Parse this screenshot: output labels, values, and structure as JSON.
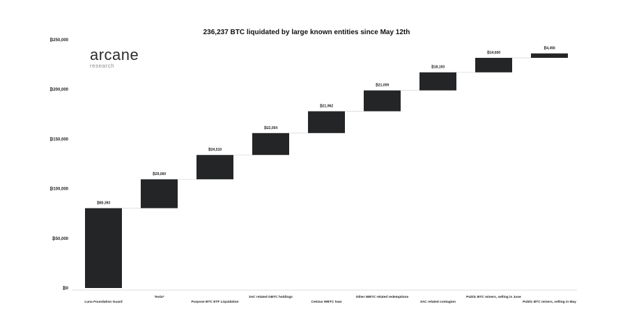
{
  "chart_data": {
    "type": "bar",
    "subtype": "waterfall",
    "title": "236,237 BTC liquidated by large known entities since May 12th",
    "categories": [
      "Luna Foundation Guard",
      "Tesla*",
      "Purpose BTC ETF Liquidation",
      "3AC related GBTC holdings",
      "Celsius WBTC loan",
      "Other WBTC related redemptions",
      "3AC related contagion",
      "Public BTC miners, selling in June",
      "Public BTC miners, selling in May"
    ],
    "values": [
      80393,
      29060,
      24510,
      22054,
      21962,
      21009,
      18193,
      14600,
      4456
    ],
    "data_labels": [
      "₿80,393",
      "₿29,060",
      "₿24,510",
      "₿22,054",
      "₿21,962",
      "₿21,009",
      "₿18,193",
      "₿14,600",
      "₿4,456"
    ],
    "ylim": [
      0,
      250000
    ],
    "yticks": [
      0,
      50000,
      100000,
      150000,
      200000,
      250000
    ],
    "ytick_labels": [
      "₿0",
      "₿50,000",
      "₿100,000",
      "₿150,000",
      "₿200,000",
      "₿250,000"
    ],
    "bar_color": "#232527",
    "connector_color": "#d9d9d9",
    "grid": false,
    "legend": "none"
  },
  "logo": {
    "name": "arcane",
    "tagline": "research"
  }
}
